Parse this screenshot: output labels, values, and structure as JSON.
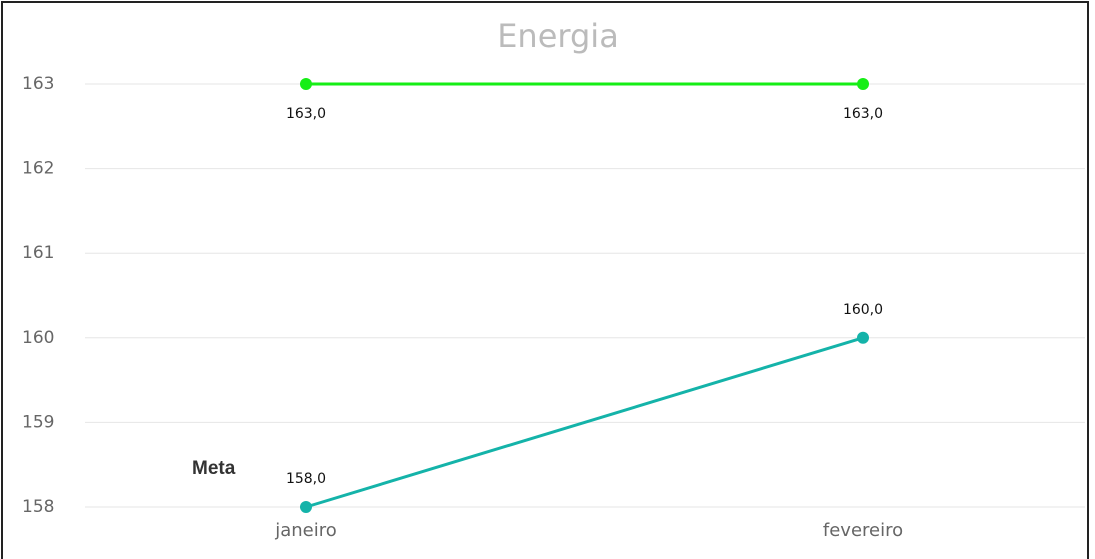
{
  "chart_data": {
    "type": "line",
    "title": "Energia",
    "categories": [
      "janeiro",
      "fevereiro"
    ],
    "series": [
      {
        "color": "#16ee16",
        "values": [
          163,
          163
        ],
        "value_labels": [
          "163,0",
          "163,0"
        ]
      },
      {
        "color": "#14b3a9",
        "values": [
          158,
          160
        ],
        "value_labels": [
          "158,0",
          "160,0"
        ]
      }
    ],
    "ylim": [
      158,
      163
    ],
    "yticks": [
      158,
      159,
      160,
      161,
      162,
      163
    ],
    "grid": true,
    "annotations": [
      "Meta"
    ]
  }
}
